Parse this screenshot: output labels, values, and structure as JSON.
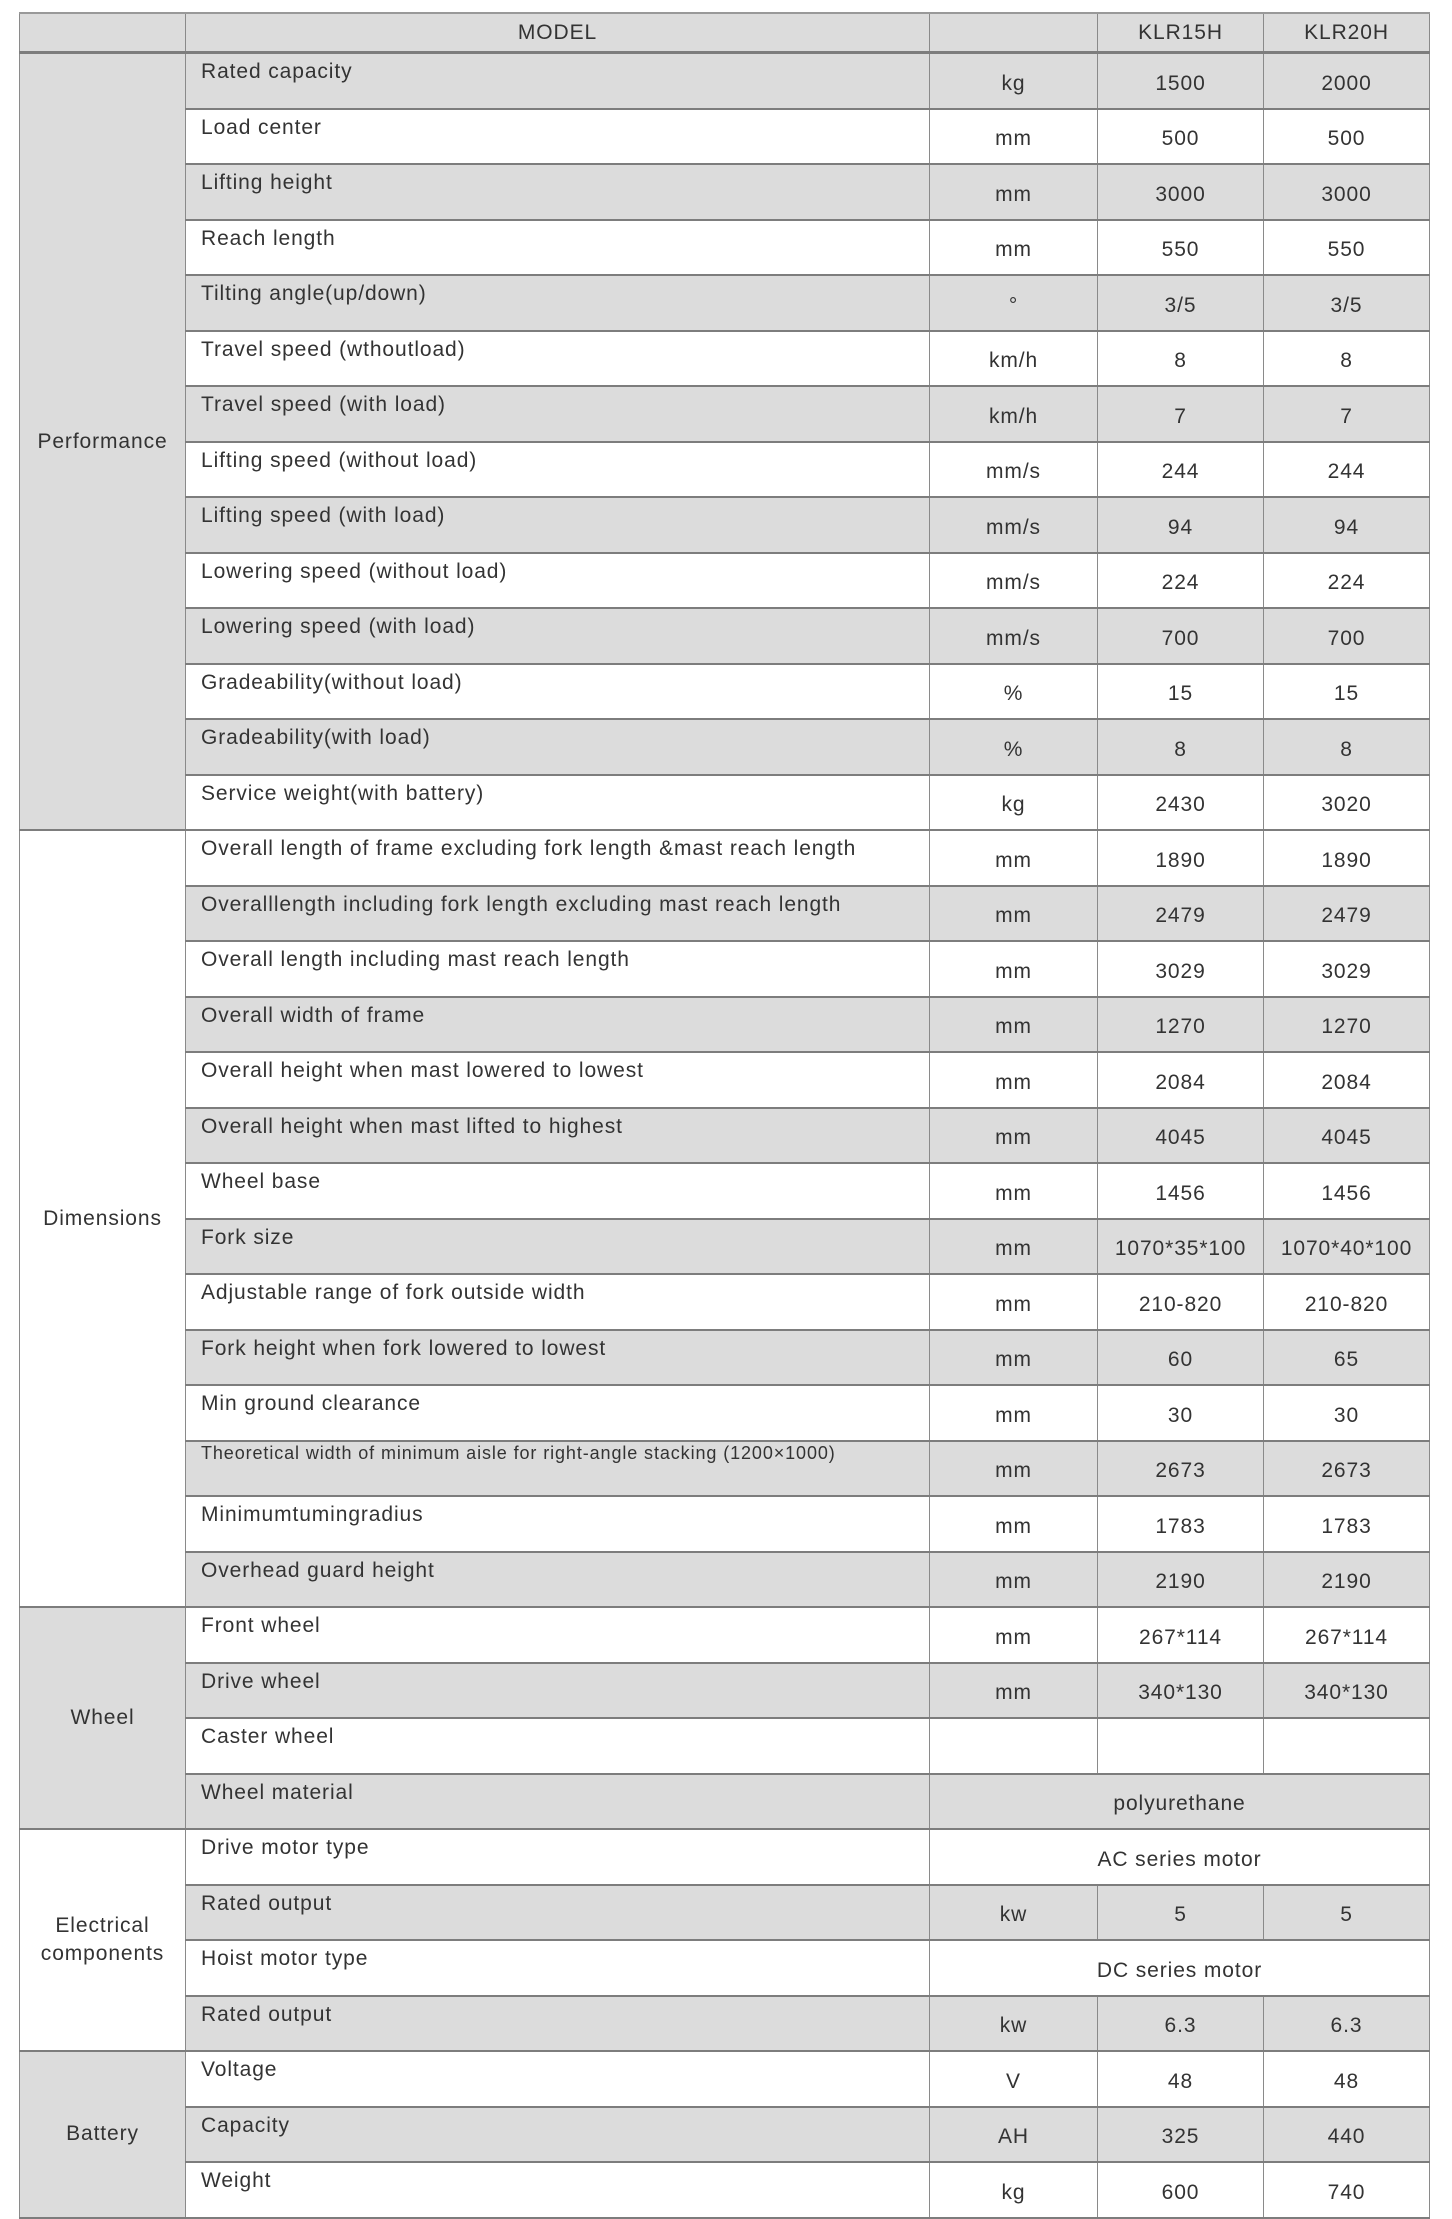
{
  "header": {
    "model_label": "MODEL",
    "unit_label": "",
    "models": [
      "KLR15H",
      "KLR20H"
    ]
  },
  "groups": [
    {
      "name": "Performance",
      "shaded": true,
      "rows": [
        {
          "label": "Rated capacity",
          "unit": "kg",
          "values": [
            "1500",
            "2000"
          ]
        },
        {
          "label": "Load center",
          "unit": "mm",
          "values": [
            "500",
            "500"
          ]
        },
        {
          "label": "Lifting height",
          "unit": "mm",
          "values": [
            "3000",
            "3000"
          ]
        },
        {
          "label": "Reach length",
          "unit": "mm",
          "values": [
            "550",
            "550"
          ]
        },
        {
          "label": "Tilting angle(up/down)",
          "unit": "°",
          "values": [
            "3/5",
            "3/5"
          ]
        },
        {
          "label": "Travel speed (wthoutload)",
          "unit": "km/h",
          "values": [
            "8",
            "8"
          ]
        },
        {
          "label": "Travel speed (with load)",
          "unit": "km/h",
          "values": [
            "7",
            "7"
          ]
        },
        {
          "label": "Lifting speed (without load)",
          "unit": "mm/s",
          "values": [
            "244",
            "244"
          ]
        },
        {
          "label": "Lifting speed (with load)",
          "unit": "mm/s",
          "values": [
            "94",
            "94"
          ]
        },
        {
          "label": "Lowering speed (without load)",
          "unit": "mm/s",
          "values": [
            "224",
            "224"
          ]
        },
        {
          "label": "Lowering speed (with load)",
          "unit": "mm/s",
          "values": [
            "700",
            "700"
          ]
        },
        {
          "label": "Gradeability(without load)",
          "unit": "%",
          "values": [
            "15",
            "15"
          ]
        },
        {
          "label": "Gradeability(with load)",
          "unit": "%",
          "values": [
            "8",
            "8"
          ]
        },
        {
          "label": "Service weight(with battery)",
          "unit": "kg",
          "values": [
            "2430",
            "3020"
          ]
        }
      ]
    },
    {
      "name": "Dimensions",
      "shaded": false,
      "rows": [
        {
          "label": "Overall length of frame excluding fork length &mast reach length",
          "unit": "mm",
          "values": [
            "1890",
            "1890"
          ]
        },
        {
          "label": "Overalllength including fork length excluding mast reach length",
          "unit": "mm",
          "values": [
            "2479",
            "2479"
          ]
        },
        {
          "label": "Overall length including mast reach length",
          "unit": "mm",
          "values": [
            "3029",
            "3029"
          ]
        },
        {
          "label": "Overall width of frame",
          "unit": "mm",
          "values": [
            "1270",
            "1270"
          ]
        },
        {
          "label": "Overall height when mast lowered to lowest",
          "unit": "mm",
          "values": [
            "2084",
            "2084"
          ]
        },
        {
          "label": "Overall height when mast lifted to highest",
          "unit": "mm",
          "values": [
            "4045",
            "4045"
          ]
        },
        {
          "label": "Wheel base",
          "unit": "mm",
          "values": [
            "1456",
            "1456"
          ]
        },
        {
          "label": "Fork size",
          "unit": "mm",
          "values": [
            "1070*35*100",
            "1070*40*100"
          ]
        },
        {
          "label": "Adjustable range of fork outside width",
          "unit": "mm",
          "values": [
            "210-820",
            "210-820"
          ]
        },
        {
          "label": "Fork height when fork lowered to lowest",
          "unit": "mm",
          "values": [
            "60",
            "65"
          ]
        },
        {
          "label": "Min ground clearance",
          "unit": "mm",
          "values": [
            "30",
            "30"
          ]
        },
        {
          "label": "Theoretical width of minimum aisle for right-angle stacking (1200×1000)",
          "unit": "mm",
          "values": [
            "2673",
            "2673"
          ],
          "small": true
        },
        {
          "label": "Minimumtumingradius",
          "unit": "mm",
          "values": [
            "1783",
            "1783"
          ]
        },
        {
          "label": "Overhead guard height",
          "unit": "mm",
          "values": [
            "2190",
            "2190"
          ]
        }
      ]
    },
    {
      "name": "Wheel",
      "shaded": true,
      "rows": [
        {
          "label": "Front wheel",
          "unit": "mm",
          "values": [
            "267*114",
            "267*114"
          ]
        },
        {
          "label": "Drive wheel",
          "unit": "mm",
          "values": [
            "340*130",
            "340*130"
          ]
        },
        {
          "label": "Caster wheel",
          "unit": "",
          "values": [
            "",
            ""
          ]
        },
        {
          "label": "Wheel material",
          "span": "polyurethane"
        }
      ]
    },
    {
      "name": "Electrical components",
      "shaded": false,
      "rows": [
        {
          "label": "Drive motor type",
          "span": "AC series motor"
        },
        {
          "label": "Rated output",
          "unit": "kw",
          "values": [
            "5",
            "5"
          ]
        },
        {
          "label": "Hoist motor type",
          "span": "DC series motor"
        },
        {
          "label": "Rated output",
          "unit": "kw",
          "values": [
            "6.3",
            "6.3"
          ]
        }
      ]
    },
    {
      "name": "Battery",
      "shaded": true,
      "rows": [
        {
          "label": "Voltage",
          "unit": "V",
          "values": [
            "48",
            "48"
          ]
        },
        {
          "label": "Capacity",
          "unit": "AH",
          "values": [
            "325",
            "440"
          ]
        },
        {
          "label": "Weight",
          "unit": "kg",
          "values": [
            "600",
            "740"
          ]
        }
      ]
    }
  ]
}
